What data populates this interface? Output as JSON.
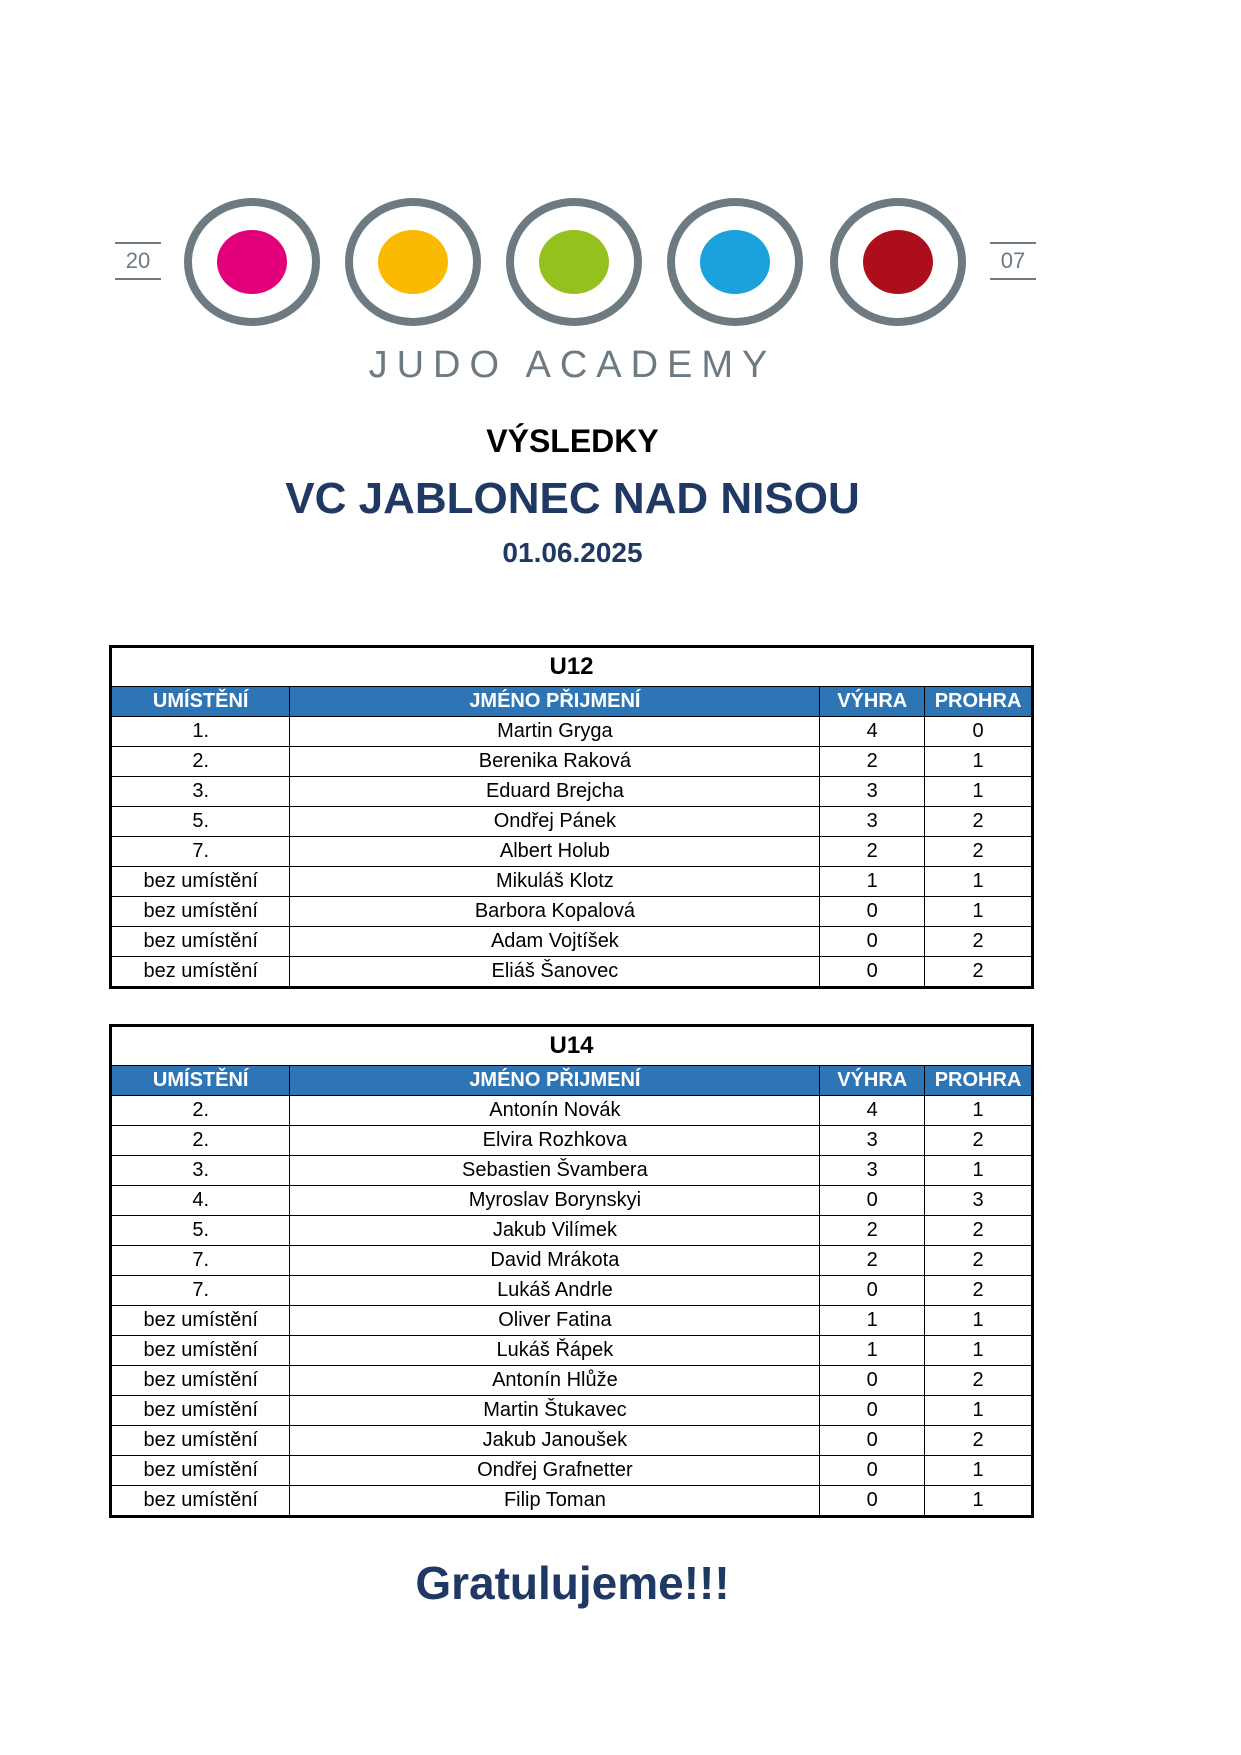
{
  "logo": {
    "text": "JUDO ACADEMY",
    "year_left": "20",
    "year_right": "07",
    "dot_colors": [
      "#e2007a",
      "#fbba00",
      "#95c11f",
      "#1ba1dc",
      "#ac0f1b"
    ],
    "ring_color": "#6d7a82"
  },
  "header": {
    "label": "VÝSLEDKY",
    "title": "VC JABLONEC NAD NISOU",
    "date": "01.06.2025"
  },
  "columns": [
    "UMÍSTĚNÍ",
    "JMÉNO PŘIJMENÍ",
    "VÝHRA",
    "PROHRA"
  ],
  "tables": [
    {
      "title": "U12",
      "rows": [
        [
          "1.",
          "Martin Gryga",
          "4",
          "0"
        ],
        [
          "2.",
          "Berenika Raková",
          "2",
          "1"
        ],
        [
          "3.",
          "Eduard Brejcha",
          "3",
          "1"
        ],
        [
          "5.",
          "Ondřej Pánek",
          "3",
          "2"
        ],
        [
          "7.",
          "Albert Holub",
          "2",
          "2"
        ],
        [
          "bez umístění",
          "Mikuláš Klotz",
          "1",
          "1"
        ],
        [
          "bez umístění",
          "Barbora Kopalová",
          "0",
          "1"
        ],
        [
          "bez umístění",
          "Adam Vojtíšek",
          "0",
          "2"
        ],
        [
          "bez umístění",
          "Eliáš Šanovec",
          "0",
          "2"
        ]
      ]
    },
    {
      "title": "U14",
      "rows": [
        [
          "2.",
          "Antonín Novák",
          "4",
          "1"
        ],
        [
          "2.",
          "Elvira Rozhkova",
          "3",
          "2"
        ],
        [
          "3.",
          "Sebastien Švambera",
          "3",
          "1"
        ],
        [
          "4.",
          "Myroslav Borynskyi",
          "0",
          "3"
        ],
        [
          "5.",
          "Jakub Vilímek",
          "2",
          "2"
        ],
        [
          "7.",
          "David Mrákota",
          "2",
          "2"
        ],
        [
          "7.",
          "Lukáš Andrle",
          "0",
          "2"
        ],
        [
          "bez umístění",
          "Oliver Fatina",
          "1",
          "1"
        ],
        [
          "bez umístění",
          "Lukáš Řápek",
          "1",
          "1"
        ],
        [
          "bez umístění",
          "Antonín Hlůže",
          "0",
          "2"
        ],
        [
          "bez umístění",
          "Martin Štukavec",
          "0",
          "1"
        ],
        [
          "bez umístění",
          "Jakub Janoušek",
          "0",
          "2"
        ],
        [
          "bez umístění",
          "Ondřej Grafnetter",
          "0",
          "1"
        ],
        [
          "bez umístění",
          "Filip Toman",
          "0",
          "1"
        ]
      ]
    }
  ],
  "footer": {
    "text": "Gratulujeme!!!"
  },
  "colors": {
    "header_bg": "#2e75b6",
    "title_blue": "#1f3864"
  }
}
